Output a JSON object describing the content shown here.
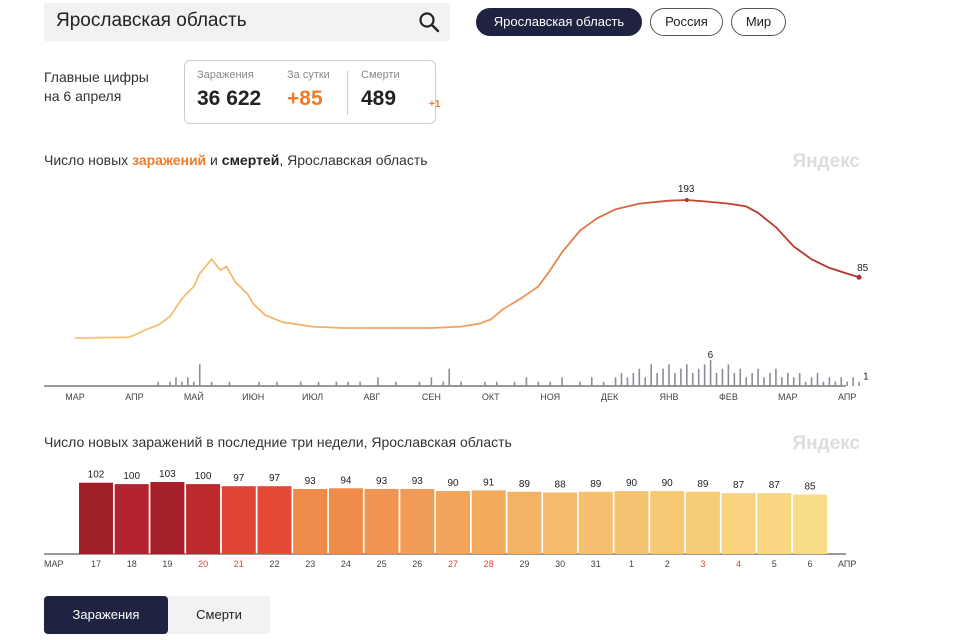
{
  "search": {
    "value": "Ярославская область"
  },
  "region_tabs": [
    {
      "label": "Ярославская область",
      "active": true
    },
    {
      "label": "Россия",
      "active": false
    },
    {
      "label": "Мир",
      "active": false
    }
  ],
  "summary": {
    "headline_line1": "Главные цифры",
    "headline_line2": "на 6 апреля",
    "infections_label": "Заражения",
    "infections_value": "36 622",
    "daily_label": "За сутки",
    "daily_value": "+85",
    "deaths_label": "Смерти",
    "deaths_value": "489",
    "deaths_delta": "+1"
  },
  "chart1_title": {
    "prefix": "Число новых ",
    "infections_word": "заражений",
    "connector": " и ",
    "deaths_word": "смертей",
    "suffix": ", Ярославская область"
  },
  "chart2_title": "Число новых заражений в последние три недели, Ярославская область",
  "watermark": "Яндекс",
  "toggle": {
    "infections": "Заражения",
    "deaths": "Смерти"
  },
  "colors": {
    "accent": "#f07b28",
    "dark": "#1f2240",
    "deaths_bars": "#8a8c9c"
  },
  "chart_data": [
    {
      "type": "line",
      "title": "Число новых заражений и смертей, Ярославская область",
      "x_ticks": [
        "МАР",
        "АПР",
        "МАЙ",
        "ИЮН",
        "ИЮЛ",
        "АВГ",
        "СЕН",
        "ОКТ",
        "НОЯ",
        "ДЕК",
        "ЯНВ",
        "ФЕВ",
        "МАР",
        "АПР"
      ],
      "ylim": [
        0,
        200
      ],
      "infections_series": {
        "name": "заражений",
        "points": [
          [
            0,
            0
          ],
          [
            0.9,
            1
          ],
          [
            1.0,
            4
          ],
          [
            1.2,
            12
          ],
          [
            1.4,
            18
          ],
          [
            1.6,
            30
          ],
          [
            1.8,
            55
          ],
          [
            2.0,
            72
          ],
          [
            2.1,
            90
          ],
          [
            2.3,
            110
          ],
          [
            2.45,
            95
          ],
          [
            2.55,
            100
          ],
          [
            2.7,
            78
          ],
          [
            2.9,
            62
          ],
          [
            3.0,
            48
          ],
          [
            3.2,
            32
          ],
          [
            3.5,
            22
          ],
          [
            4.0,
            16
          ],
          [
            4.5,
            14
          ],
          [
            5.0,
            14
          ],
          [
            5.5,
            14
          ],
          [
            6.0,
            14
          ],
          [
            6.5,
            16
          ],
          [
            6.8,
            20
          ],
          [
            7.0,
            26
          ],
          [
            7.2,
            40
          ],
          [
            7.5,
            55
          ],
          [
            7.8,
            72
          ],
          [
            8.0,
            95
          ],
          [
            8.2,
            120
          ],
          [
            8.5,
            150
          ],
          [
            8.8,
            168
          ],
          [
            9.1,
            180
          ],
          [
            9.5,
            188
          ],
          [
            10.0,
            192
          ],
          [
            10.3,
            193
          ],
          [
            10.6,
            191
          ],
          [
            11.0,
            188
          ],
          [
            11.3,
            184
          ],
          [
            11.5,
            175
          ],
          [
            11.8,
            155
          ],
          [
            12.1,
            128
          ],
          [
            12.4,
            110
          ],
          [
            12.7,
            98
          ],
          [
            13.0,
            90
          ],
          [
            13.2,
            85
          ]
        ],
        "last_label": "85",
        "peak_label": "193"
      },
      "deaths_series": {
        "name": "смертей",
        "points": [
          [
            1.4,
            1
          ],
          [
            1.6,
            1
          ],
          [
            1.7,
            2
          ],
          [
            1.8,
            1
          ],
          [
            1.9,
            2
          ],
          [
            2.0,
            1
          ],
          [
            2.1,
            5
          ],
          [
            2.3,
            1
          ],
          [
            2.6,
            1
          ],
          [
            3.1,
            1
          ],
          [
            3.4,
            1
          ],
          [
            3.8,
            1
          ],
          [
            4.1,
            1
          ],
          [
            4.4,
            1
          ],
          [
            4.6,
            1
          ],
          [
            4.8,
            1
          ],
          [
            5.1,
            2
          ],
          [
            5.4,
            1
          ],
          [
            5.8,
            1
          ],
          [
            6.0,
            2
          ],
          [
            6.2,
            1
          ],
          [
            6.3,
            4
          ],
          [
            6.5,
            1
          ],
          [
            6.9,
            1
          ],
          [
            7.1,
            1
          ],
          [
            7.4,
            1
          ],
          [
            7.6,
            2
          ],
          [
            7.8,
            1
          ],
          [
            8.0,
            1
          ],
          [
            8.2,
            2
          ],
          [
            8.5,
            1
          ],
          [
            8.7,
            2
          ],
          [
            8.9,
            1
          ],
          [
            9.1,
            2
          ],
          [
            9.2,
            3
          ],
          [
            9.3,
            2
          ],
          [
            9.4,
            3
          ],
          [
            9.5,
            4
          ],
          [
            9.6,
            2
          ],
          [
            9.7,
            5
          ],
          [
            9.8,
            3
          ],
          [
            9.9,
            4
          ],
          [
            10.0,
            5
          ],
          [
            10.1,
            3
          ],
          [
            10.2,
            4
          ],
          [
            10.3,
            5
          ],
          [
            10.4,
            3
          ],
          [
            10.5,
            4
          ],
          [
            10.6,
            5
          ],
          [
            10.7,
            6
          ],
          [
            10.8,
            3
          ],
          [
            10.9,
            4
          ],
          [
            11.0,
            5
          ],
          [
            11.1,
            3
          ],
          [
            11.2,
            4
          ],
          [
            11.3,
            2
          ],
          [
            11.4,
            3
          ],
          [
            11.5,
            4
          ],
          [
            11.6,
            2
          ],
          [
            11.7,
            3
          ],
          [
            11.8,
            4
          ],
          [
            11.9,
            2
          ],
          [
            12.0,
            3
          ],
          [
            12.1,
            2
          ],
          [
            12.2,
            3
          ],
          [
            12.3,
            1
          ],
          [
            12.4,
            2
          ],
          [
            12.5,
            3
          ],
          [
            12.6,
            1
          ],
          [
            12.7,
            2
          ],
          [
            12.8,
            1
          ],
          [
            12.9,
            2
          ],
          [
            13.0,
            1
          ],
          [
            13.1,
            2
          ],
          [
            13.2,
            1
          ]
        ],
        "peak_label": "6",
        "last_label": "1"
      }
    },
    {
      "type": "bar",
      "title": "Число новых заражений в последние три недели, Ярославская область",
      "left_axis_label": "МАР",
      "right_axis_label": "АПР",
      "categories": [
        "17",
        "18",
        "19",
        "20",
        "21",
        "22",
        "23",
        "24",
        "25",
        "26",
        "27",
        "28",
        "29",
        "30",
        "31",
        "1",
        "2",
        "3",
        "4",
        "5",
        "6"
      ],
      "values": [
        102,
        100,
        103,
        100,
        97,
        97,
        93,
        94,
        93,
        93,
        90,
        91,
        89,
        88,
        89,
        90,
        90,
        89,
        87,
        87,
        85
      ],
      "weekend": [
        false,
        false,
        false,
        true,
        true,
        false,
        false,
        false,
        false,
        false,
        true,
        true,
        false,
        false,
        false,
        false,
        false,
        true,
        true,
        false,
        false
      ],
      "colors": [
        "#a0202a",
        "#b42430",
        "#a52028",
        "#bd2a2e",
        "#e04434",
        "#e44a36",
        "#ee8a4a",
        "#ef8c4a",
        "#f09652",
        "#f09c56",
        "#f2a45a",
        "#f3aa5c",
        "#f4b264",
        "#f5ba6a",
        "#f6c070",
        "#f5c472",
        "#f6c874",
        "#f7cc78",
        "#f8d27e",
        "#f8d682",
        "#f9dc88"
      ]
    }
  ]
}
